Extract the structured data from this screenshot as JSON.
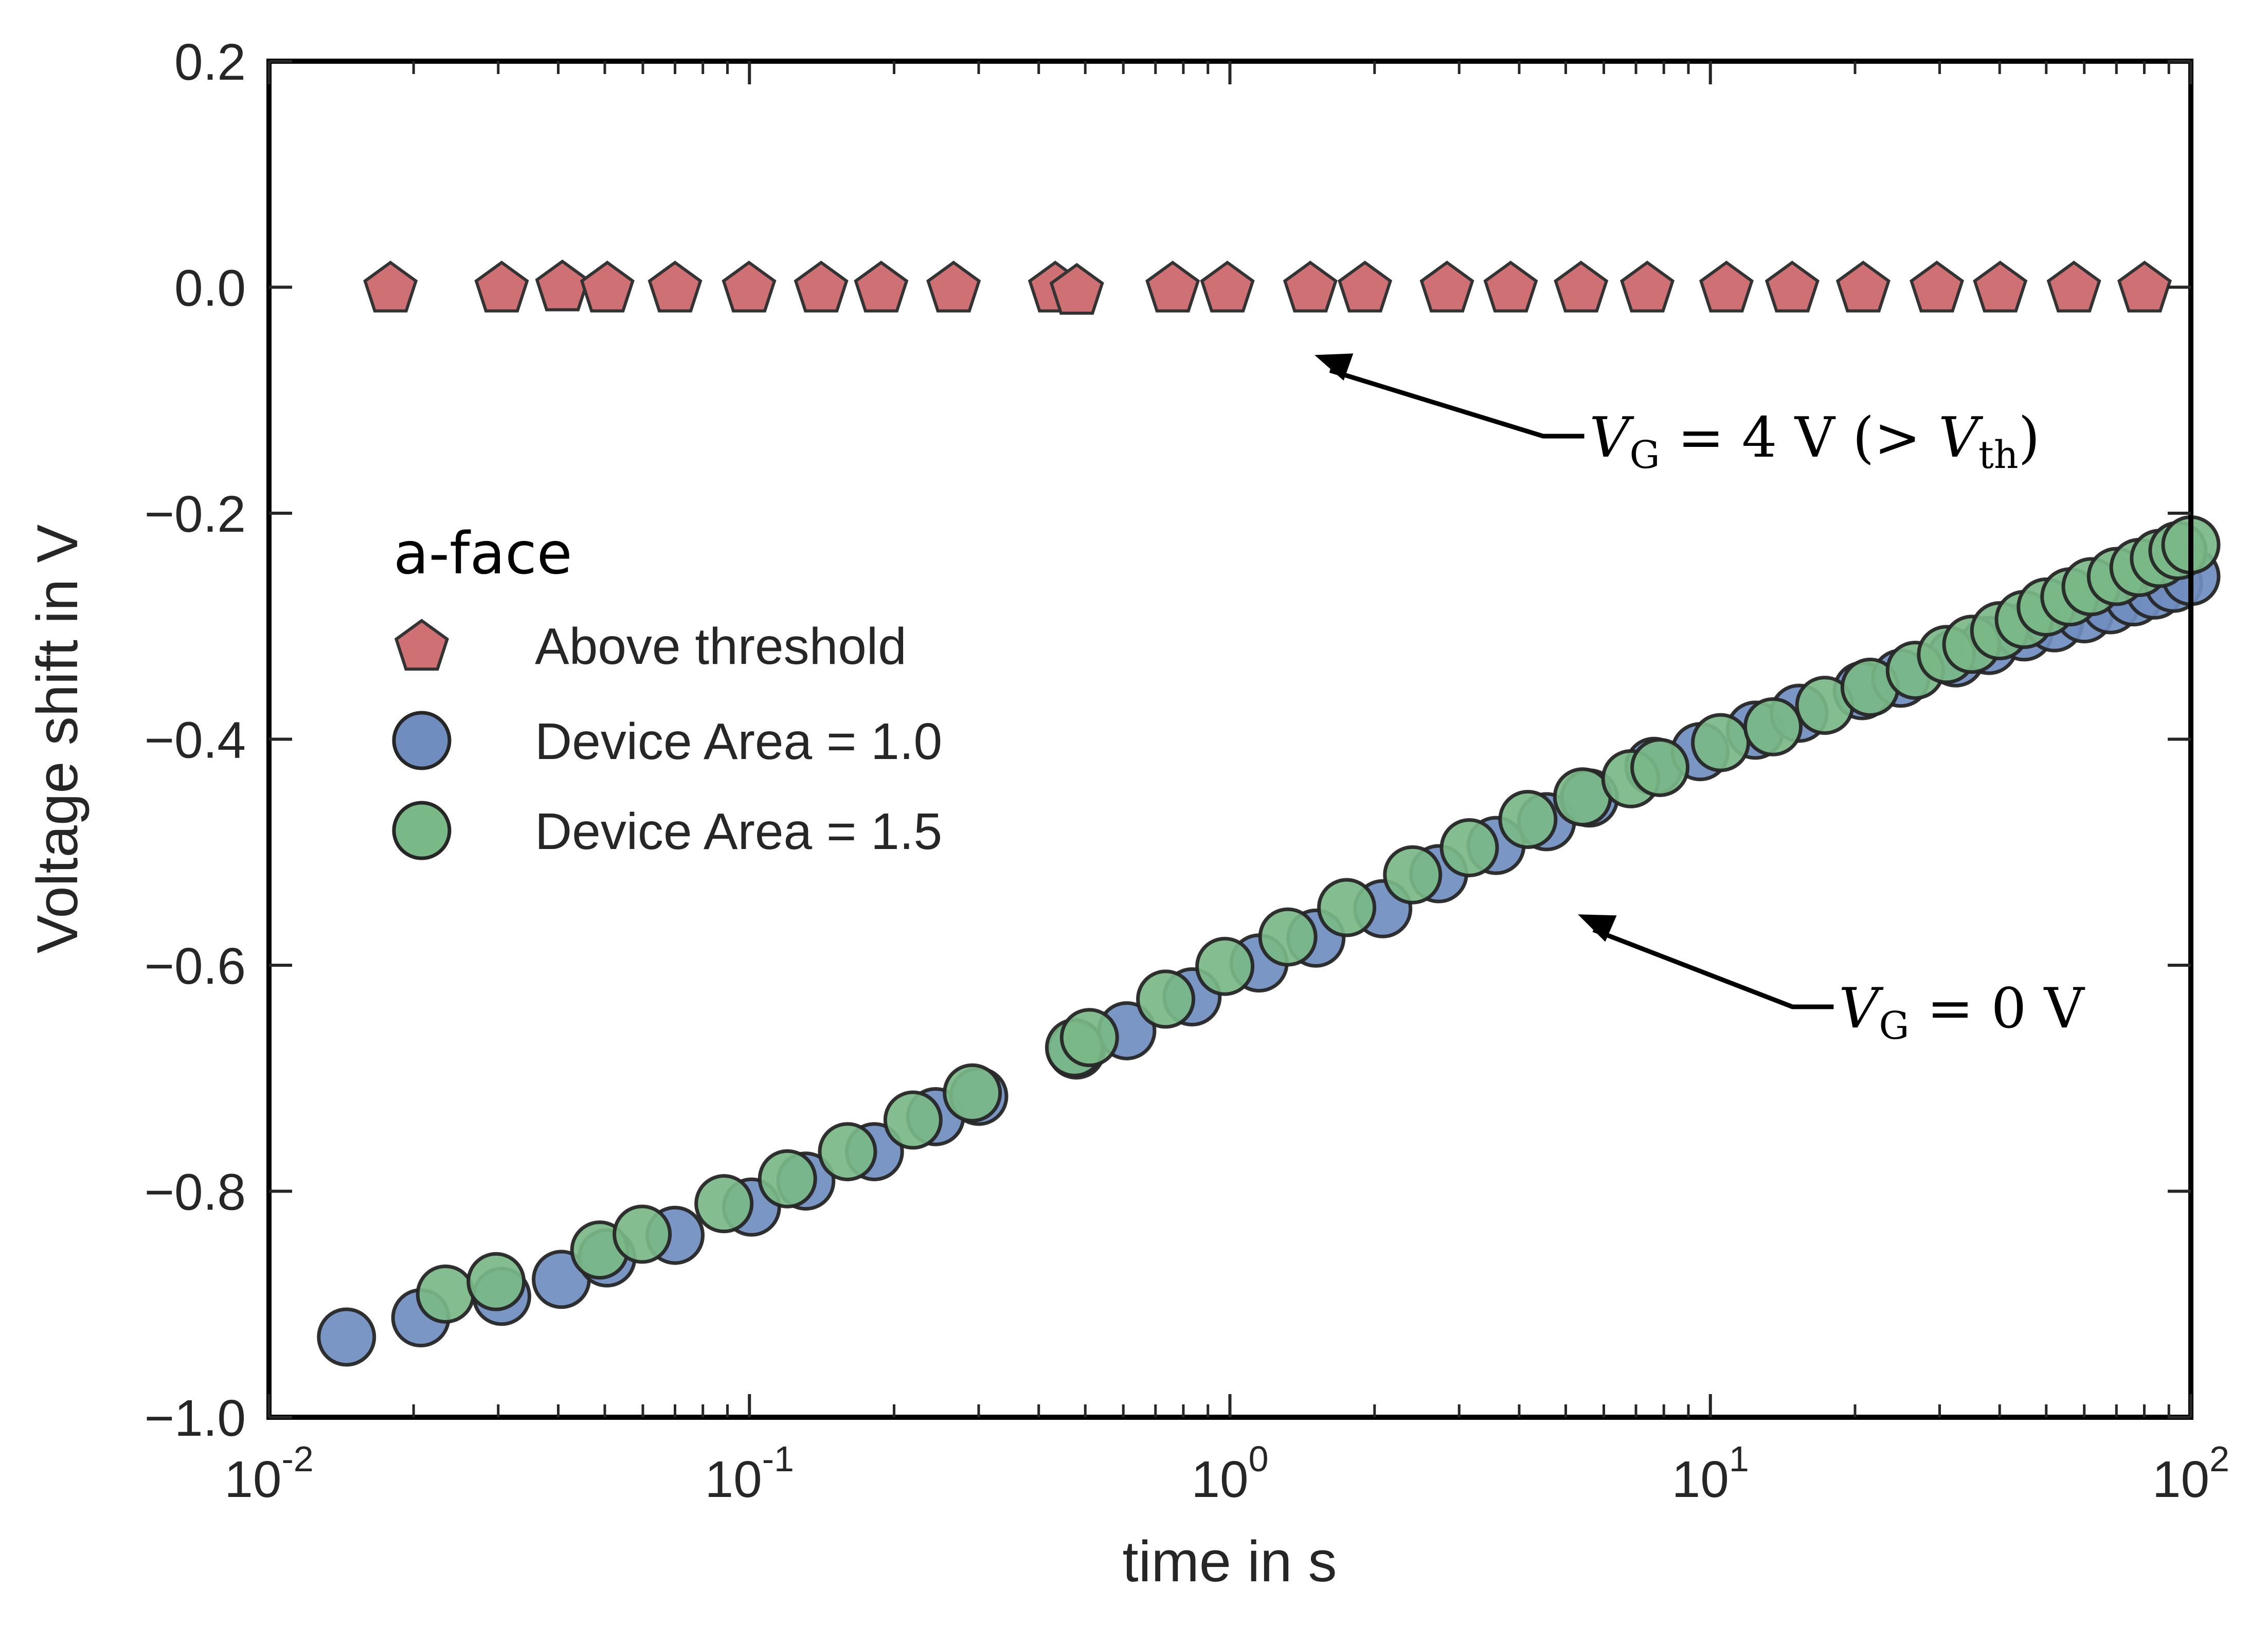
{
  "chart_data": {
    "type": "scatter",
    "title": "",
    "xlabel": "time in s",
    "ylabel": "Voltage shift in V",
    "xscale": "log",
    "xlim": [
      0.01,
      100
    ],
    "ylim": [
      -1.0,
      0.2
    ],
    "x_ticks": [
      {
        "value": 0.01,
        "base": "10",
        "exp": "-2"
      },
      {
        "value": 0.1,
        "base": "10",
        "exp": "-1"
      },
      {
        "value": 1,
        "base": "10",
        "exp": "0"
      },
      {
        "value": 10,
        "base": "10",
        "exp": "1"
      },
      {
        "value": 100,
        "base": "10",
        "exp": "2"
      }
    ],
    "y_ticks": [
      {
        "value": 0.2,
        "label": "0.2"
      },
      {
        "value": 0.0,
        "label": "0.0"
      },
      {
        "value": -0.2,
        "label": "−0.2"
      },
      {
        "value": -0.4,
        "label": "−0.4"
      },
      {
        "value": -0.6,
        "label": "−0.6"
      },
      {
        "value": -0.8,
        "label": "−0.8"
      },
      {
        "value": -1.0,
        "label": "−1.0"
      }
    ],
    "grid": false,
    "legend": {
      "title": "a-face",
      "placement": "center-left",
      "entries": [
        {
          "label": "Above threshold",
          "marker": "pentagon",
          "color": "#cf7075"
        },
        {
          "label": "Device Area = 1.0",
          "marker": "circle",
          "color": "#6f8dbf"
        },
        {
          "label": "Device Area = 1.5",
          "marker": "circle",
          "color": "#79b887"
        }
      ]
    },
    "series": [
      {
        "name": "Above threshold",
        "marker": "pentagon",
        "color": "#cf7075",
        "x": [
          0.0179,
          0.0305,
          0.0408,
          0.0506,
          0.07,
          0.0998,
          0.141,
          0.188,
          0.266,
          0.433,
          0.48,
          0.76,
          0.988,
          1.47,
          1.91,
          2.83,
          3.84,
          5.38,
          7.39,
          10.8,
          14.8,
          20.8,
          29.6,
          40.1,
          57.1,
          80.1
        ],
        "y": [
          0.0,
          0.0,
          0.001,
          0.0,
          0.0,
          0.0,
          0.0,
          0.0,
          0.0,
          0.0,
          -0.002,
          0.0,
          0.0,
          0.0,
          0.0,
          0.0,
          0.0,
          0.0,
          0.0,
          0.0,
          0.0,
          0.0,
          0.0,
          0.0,
          0.0,
          0.0
        ]
      },
      {
        "name": "Device Area = 1.0",
        "marker": "circle",
        "color": "#6f8dbf",
        "x": [
          0.0145,
          0.0207,
          0.0305,
          0.0406,
          0.0505,
          0.07,
          0.101,
          0.131,
          0.182,
          0.244,
          0.3,
          0.479,
          0.61,
          0.834,
          1.15,
          1.51,
          2.08,
          2.72,
          3.58,
          4.56,
          5.6,
          7.63,
          9.52,
          12.4,
          15.3,
          20.7,
          24.9,
          32.4,
          38.0,
          45.0,
          52.0,
          60.0,
          68.0,
          76.0,
          84.0,
          92.0,
          100.0
        ],
        "y": [
          -0.929,
          -0.912,
          -0.893,
          -0.878,
          -0.859,
          -0.839,
          -0.814,
          -0.791,
          -0.765,
          -0.734,
          -0.716,
          -0.675,
          -0.658,
          -0.628,
          -0.598,
          -0.576,
          -0.55,
          -0.519,
          -0.494,
          -0.473,
          -0.452,
          -0.424,
          -0.411,
          -0.392,
          -0.377,
          -0.357,
          -0.346,
          -0.328,
          -0.317,
          -0.305,
          -0.297,
          -0.289,
          -0.281,
          -0.274,
          -0.268,
          -0.262,
          -0.256
        ]
      },
      {
        "name": "Device Area = 1.5",
        "marker": "circle",
        "color": "#79b887",
        "x": [
          0.0233,
          0.0297,
          0.0488,
          0.0598,
          0.0885,
          0.12,
          0.16,
          0.219,
          0.291,
          0.475,
          0.51,
          0.735,
          0.976,
          1.32,
          1.75,
          2.4,
          3.15,
          4.17,
          5.42,
          6.83,
          7.85,
          10.5,
          13.5,
          17.3,
          21.5,
          26.7,
          31.0,
          35.0,
          40.0,
          45.0,
          50.0,
          56.0,
          62.0,
          70.0,
          78.0,
          86.0,
          94.0,
          100.0
        ],
        "y": [
          -0.891,
          -0.88,
          -0.852,
          -0.838,
          -0.811,
          -0.789,
          -0.765,
          -0.737,
          -0.713,
          -0.673,
          -0.664,
          -0.63,
          -0.601,
          -0.575,
          -0.549,
          -0.52,
          -0.496,
          -0.471,
          -0.451,
          -0.435,
          -0.425,
          -0.403,
          -0.389,
          -0.37,
          -0.354,
          -0.339,
          -0.325,
          -0.316,
          -0.304,
          -0.294,
          -0.283,
          -0.274,
          -0.265,
          -0.256,
          -0.248,
          -0.24,
          -0.233,
          -0.228
        ]
      }
    ],
    "annotations": [
      {
        "text_main": "V",
        "text_sub": "G",
        "text_rest": " = 4 V (> ",
        "text_main2": "V",
        "text_sub2": "th",
        "text_end": ")",
        "arrow_to": {
          "x": 1.5,
          "y": -0.06
        },
        "text_at": {
          "x": 5.6,
          "y": -0.15
        }
      },
      {
        "text_main": "V",
        "text_sub": "G",
        "text_rest": " = 0 V",
        "arrow_to": {
          "x": 5.3,
          "y": -0.555
        },
        "text_at": {
          "x": 18.5,
          "y": -0.655
        }
      }
    ]
  }
}
